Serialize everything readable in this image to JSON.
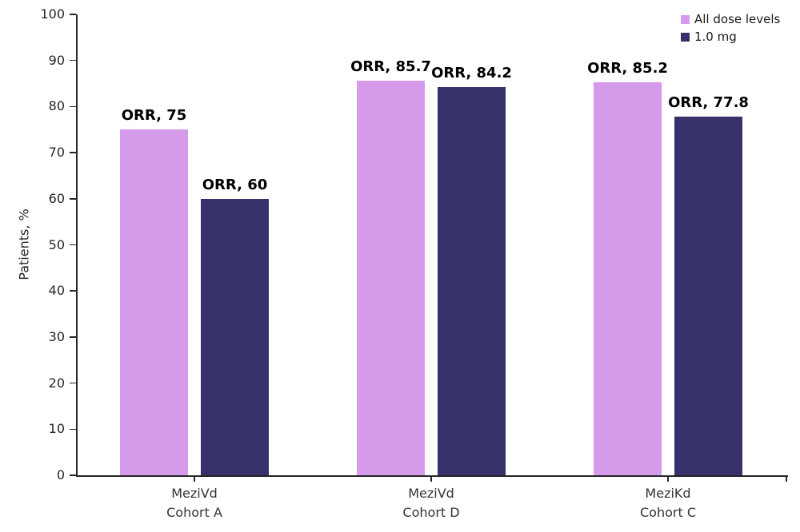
{
  "chart_data": {
    "type": "bar",
    "title": "",
    "ylabel": "Patients, %",
    "xlabel": "",
    "ylim": [
      0,
      100
    ],
    "yticks": [
      0,
      10,
      20,
      30,
      40,
      50,
      60,
      70,
      80,
      90,
      100
    ],
    "grid": false,
    "legend_position": "top-right",
    "categories": [
      {
        "line1": "MeziVd",
        "line2": "Cohort A"
      },
      {
        "line1": "MeziVd",
        "line2": "Cohort D"
      },
      {
        "line1": "MeziKd",
        "line2": "Cohort C"
      }
    ],
    "series": [
      {
        "name": "All dose levels",
        "color": "#d69aeb",
        "values": [
          75,
          85.7,
          85.2
        ],
        "point_labels": [
          "ORR, 75",
          "ORR, 85.7",
          "ORR, 85.2"
        ]
      },
      {
        "name": "1.0 mg",
        "color": "#37316b",
        "values": [
          60,
          84.2,
          77.8
        ],
        "point_labels": [
          "ORR, 60",
          "ORR, 84.2",
          "ORR, 77.8"
        ]
      }
    ],
    "colors": {
      "axis": "#262626",
      "tick_label": "#262626",
      "category_label": "#333333",
      "data_label": "#000000",
      "background": "#ffffff"
    }
  }
}
